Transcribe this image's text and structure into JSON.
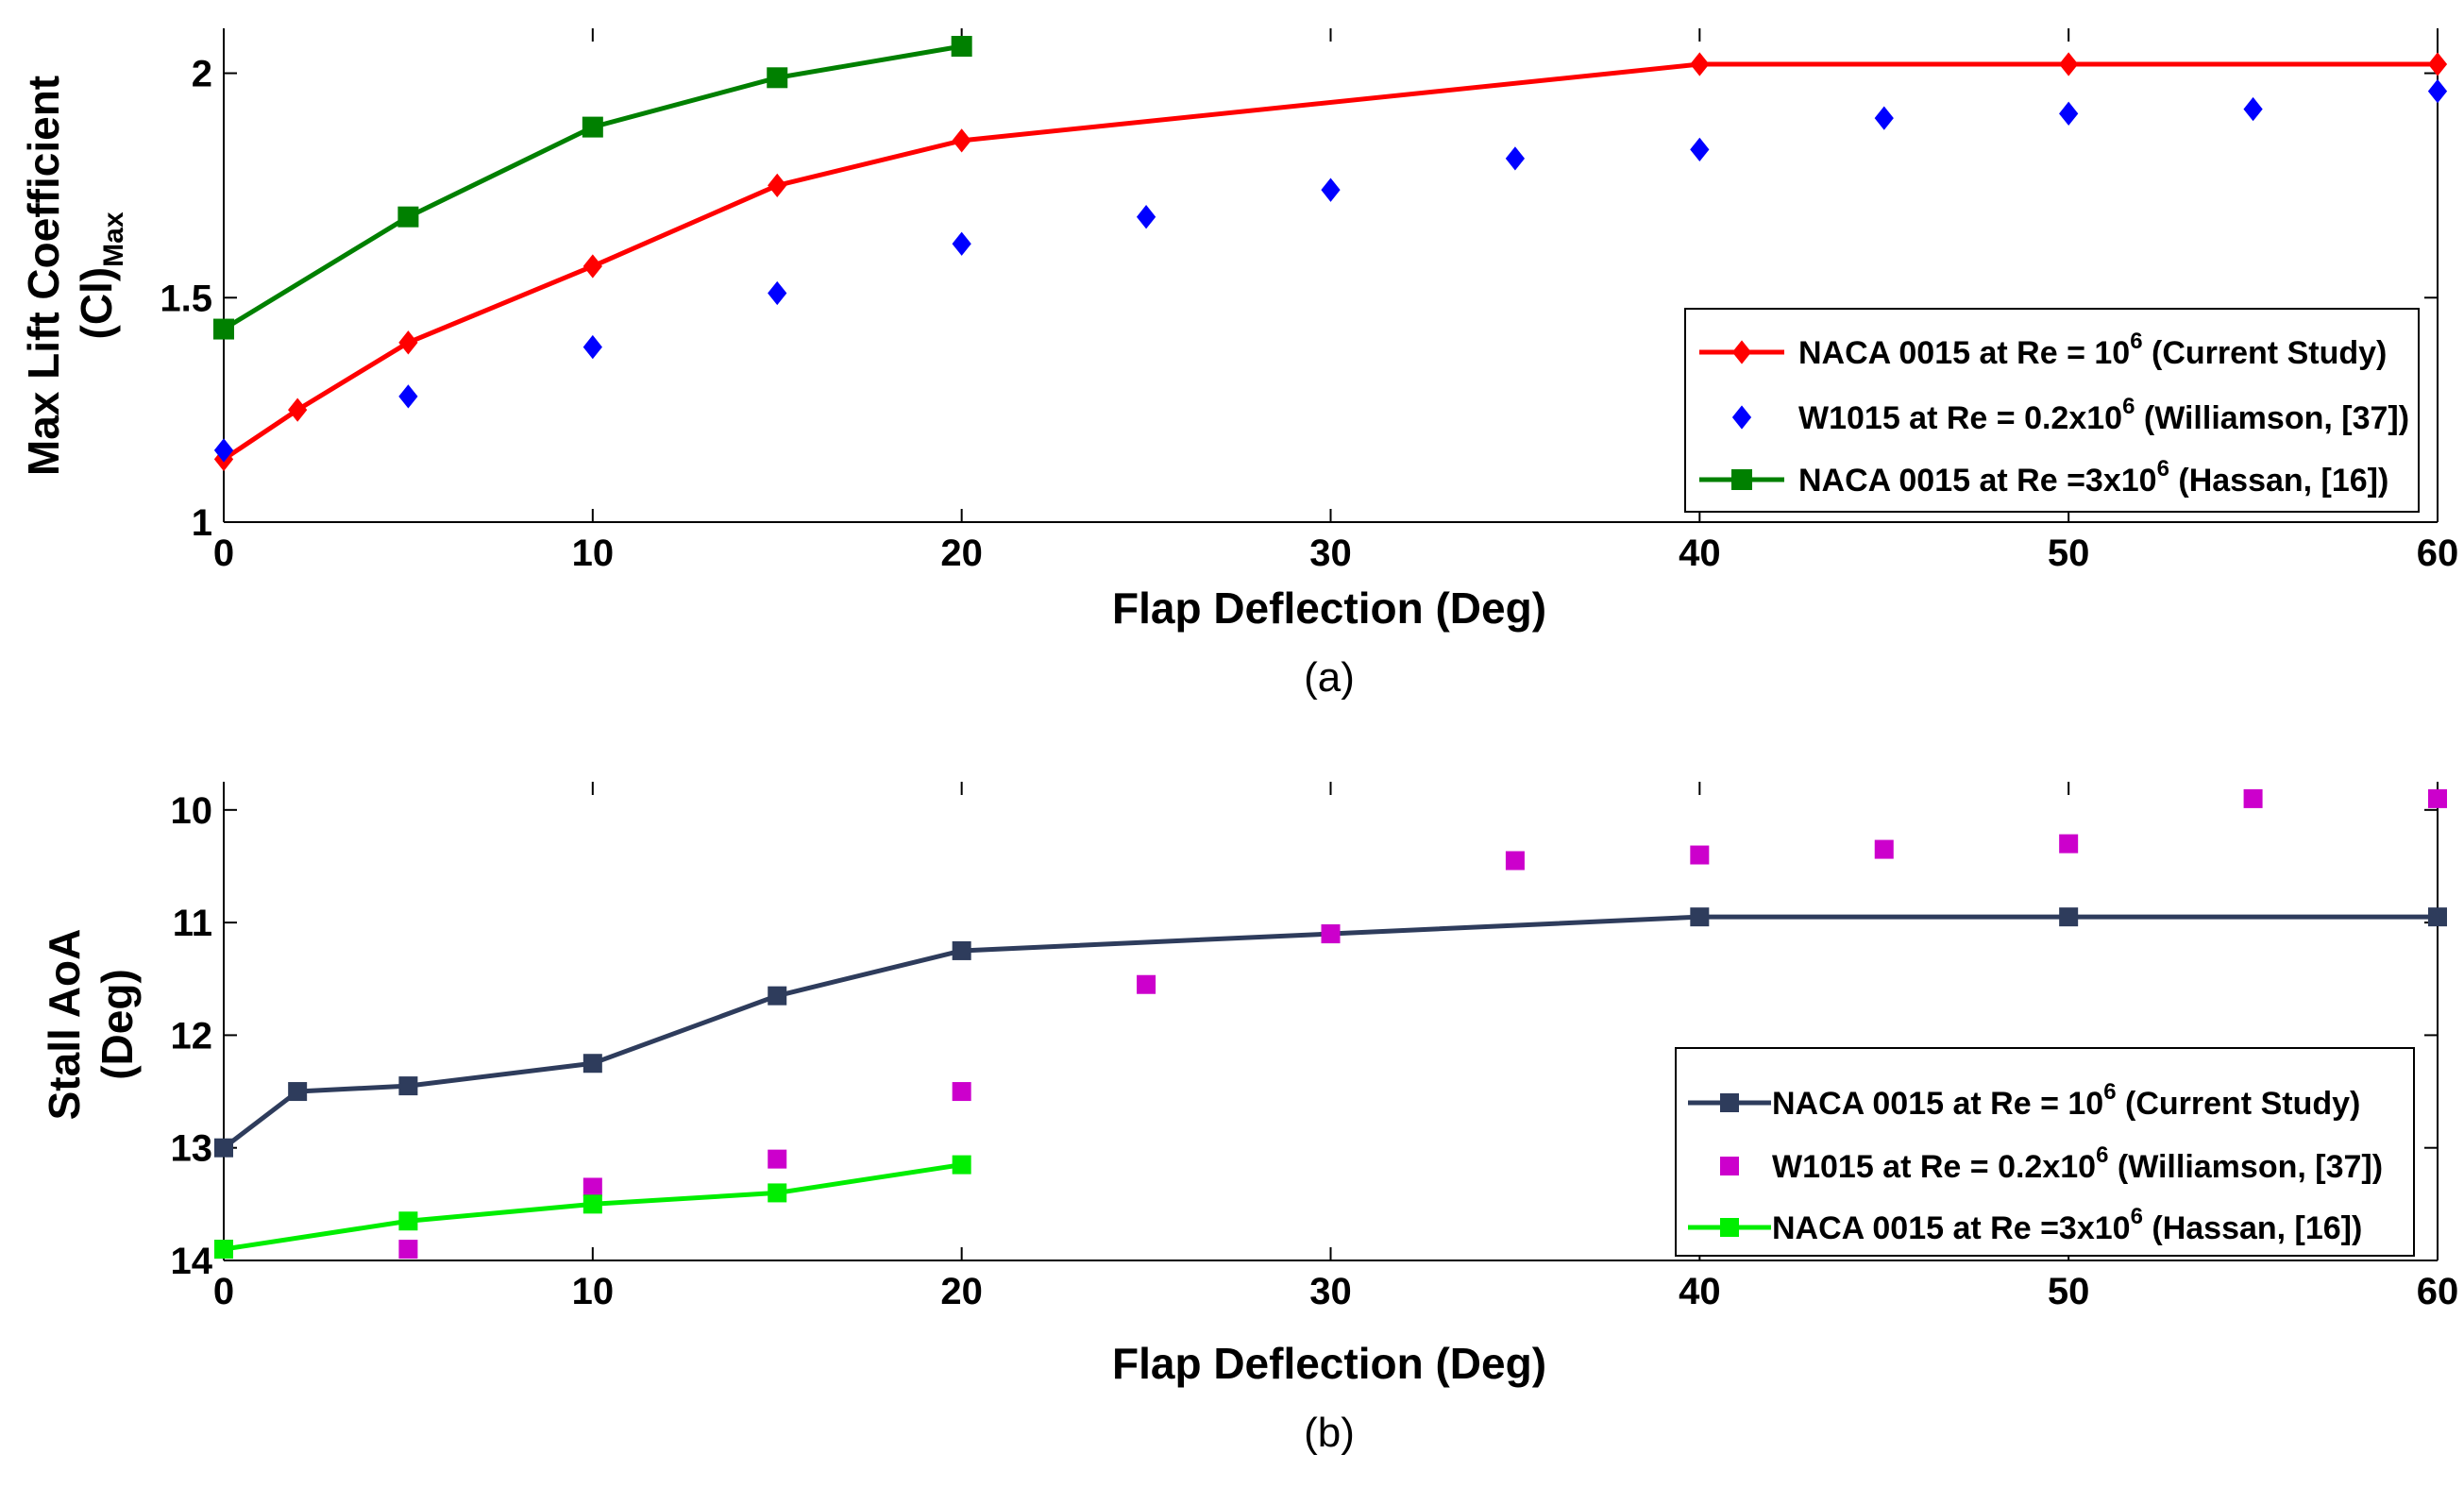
{
  "chart_data": [
    {
      "type": "line",
      "panel_label": "(a)",
      "xlabel": "Flap Deflection (Deg)",
      "ylabel": "Max Lift Coefficient",
      "ylabel_line2": "(Cl)",
      "ylabel_line2_sub": "Max",
      "xlim": [
        0,
        60
      ],
      "ylim": [
        1,
        2.1
      ],
      "y_reversed": false,
      "x_ticks": [
        0,
        10,
        20,
        30,
        40,
        50,
        60
      ],
      "x_tick_labels": [
        "0",
        "10",
        "20",
        "30",
        "40",
        "50",
        "60"
      ],
      "y_ticks": [
        1,
        1.5,
        2
      ],
      "y_tick_labels": [
        "1",
        "1.5",
        "2"
      ],
      "legend_position": "lower-right",
      "series": [
        {
          "name": "NACA 0015 at Re = 10^6 (Current Study)",
          "legend": {
            "pre": "NACA 0015 at Re = 10",
            "sup": "6",
            "post": " (Current Study)"
          },
          "color": "#ff0000",
          "marker": "diamond",
          "line": true,
          "x": [
            0,
            2,
            5,
            10,
            15,
            20,
            40,
            50,
            60
          ],
          "y": [
            1.14,
            1.25,
            1.4,
            1.57,
            1.75,
            1.85,
            2.02,
            2.02,
            2.02
          ]
        },
        {
          "name": "W1015 at Re = 0.2x10^6 (Williamson, [37])",
          "legend": {
            "pre": "W1015 at Re = 0.2x10",
            "sup": "6",
            "post": " (Williamson, [37])"
          },
          "color": "#0000ff",
          "marker": "diamond",
          "line": false,
          "x": [
            0,
            5,
            10,
            15,
            20,
            25,
            30,
            35,
            40,
            45,
            50,
            55,
            60
          ],
          "y": [
            1.16,
            1.28,
            1.39,
            1.51,
            1.62,
            1.68,
            1.74,
            1.81,
            1.83,
            1.9,
            1.91,
            1.92,
            1.96
          ]
        },
        {
          "name": "NACA 0015 at Re =3x10^6 (Hassan, [16])",
          "legend": {
            "pre": "NACA 0015 at Re =3x10",
            "sup": "6",
            "post": " (Hassan, [16])"
          },
          "color": "#008000",
          "marker": "square",
          "line": true,
          "x": [
            0,
            5,
            10,
            15,
            20
          ],
          "y": [
            1.43,
            1.68,
            1.88,
            1.99,
            2.06
          ]
        }
      ]
    },
    {
      "type": "line",
      "panel_label": "(b)",
      "xlabel": "Flap Deflection (Deg)",
      "ylabel": "Stall AoA",
      "ylabel_line2": "(Deg)",
      "ylabel_line2_sub": "",
      "xlim": [
        0,
        60
      ],
      "ylim": [
        9.75,
        14
      ],
      "y_reversed": true,
      "x_ticks": [
        0,
        10,
        20,
        30,
        40,
        50,
        60
      ],
      "x_tick_labels": [
        "0",
        "10",
        "20",
        "30",
        "40",
        "50",
        "60"
      ],
      "y_ticks": [
        10,
        11,
        12,
        13,
        14
      ],
      "y_tick_labels": [
        "10",
        "11",
        "12",
        "13",
        "14"
      ],
      "legend_position": "lower-right",
      "series": [
        {
          "name": "NACA 0015 at Re = 10^6 (Current Study)",
          "legend": {
            "pre": "NACA 0015 at Re = 10",
            "sup": "6",
            "post": " (Current Study)"
          },
          "color": "#2e3c5c",
          "marker": "square",
          "line": true,
          "x": [
            0,
            2,
            5,
            10,
            15,
            20,
            30,
            40,
            50,
            60
          ],
          "y": [
            13.0,
            12.5,
            12.45,
            12.25,
            11.65,
            11.25,
            11.1,
            10.95,
            10.95,
            10.95
          ]
        },
        {
          "name": "W1015 at Re = 0.2x10^6 (Williamson, [37])",
          "legend": {
            "pre": "W1015 at Re = 0.2x10",
            "sup": "6",
            "post": " (Williamson, [37])"
          },
          "color": "#cc00cc",
          "marker": "square",
          "line": false,
          "x": [
            0,
            5,
            10,
            15,
            20,
            25,
            30,
            35,
            40,
            45,
            50,
            55,
            60
          ],
          "y": [
            13.9,
            13.9,
            13.35,
            13.1,
            12.5,
            11.55,
            11.1,
            10.45,
            10.4,
            10.35,
            10.3,
            9.9,
            9.9
          ]
        },
        {
          "name": "NACA 0015 at Re =3x10^6 (Hassan, [16])",
          "legend": {
            "pre": "NACA 0015 at Re =3x10",
            "sup": "6",
            "post": " (Hassan, [16])"
          },
          "color": "#00ee00",
          "marker": "square",
          "line": true,
          "x": [
            0,
            5,
            10,
            15,
            20
          ],
          "y": [
            13.9,
            13.65,
            13.5,
            13.4,
            13.15
          ]
        }
      ]
    }
  ]
}
